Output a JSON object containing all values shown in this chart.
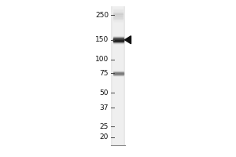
{
  "background_color": "#ffffff",
  "blot_bg_color": "#e8e8e8",
  "lane_color": "#e0e0e0",
  "marker_labels": [
    "250",
    "150",
    "100",
    "75",
    "50",
    "37",
    "25",
    "20"
  ],
  "marker_positions": [
    250,
    150,
    100,
    75,
    50,
    37,
    25,
    20
  ],
  "band_mw": 150,
  "band2_mw": 75,
  "arrow_mw": 150,
  "font_size": 6.5,
  "fig_width": 3.0,
  "fig_height": 2.0,
  "dpi": 100
}
